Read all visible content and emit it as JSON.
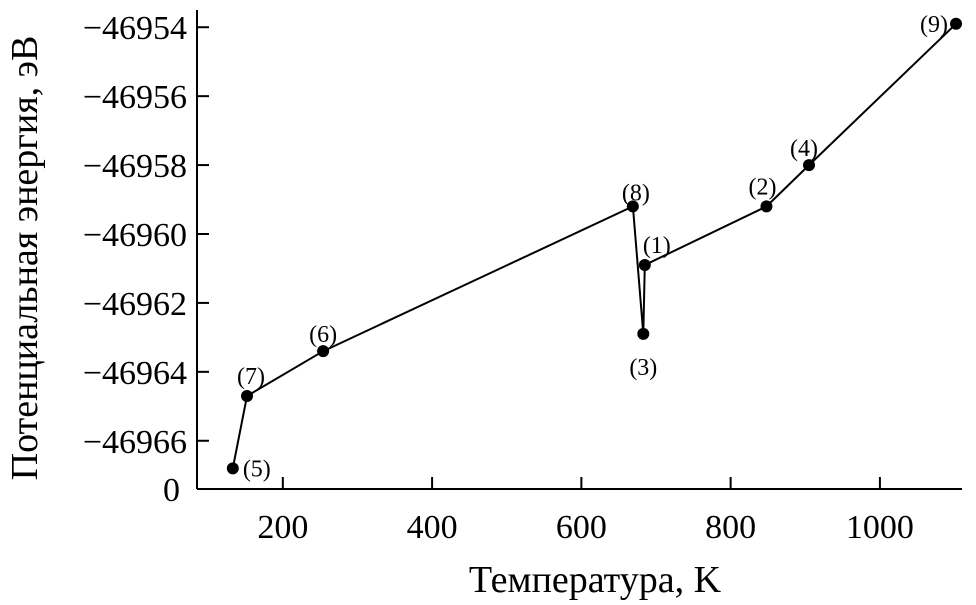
{
  "chart_data": {
    "type": "line",
    "xlabel": "Температура, K",
    "ylabel": "Потенциальная энергия, эВ",
    "xlim": [
      85,
      1110
    ],
    "ylim": [
      -46967.4,
      -46953.5
    ],
    "xticks": [
      200,
      400,
      600,
      800,
      1000
    ],
    "xtick_labels": [
      "200",
      "400",
      "600",
      "800",
      "1000"
    ],
    "yticks": [
      -46954,
      -46956,
      -46958,
      -46960,
      -46962,
      -46964,
      -46966
    ],
    "ytick_labels": [
      "−46954",
      "−46956",
      "−46958",
      "−46960",
      "−46962",
      "−46964",
      "−46966"
    ],
    "y_origin_label": "0",
    "grid": false,
    "series": [
      {
        "points": [
          {
            "label": "(5)",
            "x": 133,
            "y": -46966.8
          },
          {
            "label": "(7)",
            "x": 152,
            "y": -46964.7
          },
          {
            "label": "(6)",
            "x": 254,
            "y": -46963.4
          },
          {
            "label": "(8)",
            "x": 669,
            "y": -46959.2
          },
          {
            "label": "(3)",
            "x": 683,
            "y": -46962.9
          },
          {
            "label": "(1)",
            "x": 685,
            "y": -46960.9
          },
          {
            "label": "(2)",
            "x": 848,
            "y": -46959.2
          },
          {
            "label": "(4)",
            "x": 905,
            "y": -46958.0
          },
          {
            "label": "(9)",
            "x": 1102,
            "y": -46953.9
          }
        ]
      }
    ]
  }
}
